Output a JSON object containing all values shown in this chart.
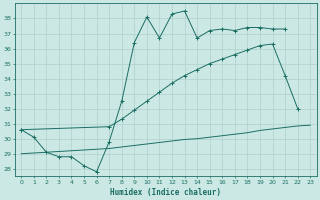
{
  "line1_x": [
    0,
    1,
    2,
    3,
    4,
    5,
    6,
    7,
    8,
    9,
    10,
    11,
    12,
    13,
    14,
    15,
    16,
    17,
    18,
    19,
    20,
    21
  ],
  "line1_y": [
    30.6,
    30.1,
    29.1,
    28.8,
    28.8,
    28.2,
    27.8,
    29.8,
    32.5,
    36.4,
    38.1,
    36.7,
    38.3,
    38.5,
    36.7,
    37.2,
    37.3,
    37.2,
    37.4,
    37.4,
    37.3,
    37.3
  ],
  "line2_x": [
    0,
    7,
    8,
    9,
    10,
    11,
    12,
    13,
    14,
    15,
    16,
    17,
    18,
    19,
    20,
    21,
    22
  ],
  "line2_y": [
    30.6,
    30.8,
    31.3,
    31.9,
    32.5,
    33.1,
    33.7,
    34.2,
    34.6,
    35.0,
    35.3,
    35.6,
    35.9,
    36.2,
    36.3,
    34.2,
    32.0
  ],
  "line3_x": [
    0,
    1,
    2,
    3,
    4,
    5,
    6,
    7,
    8,
    9,
    10,
    11,
    12,
    13,
    14,
    15,
    16,
    17,
    18,
    19,
    20,
    21,
    22,
    23
  ],
  "line3_y": [
    29.0,
    29.05,
    29.1,
    29.15,
    29.2,
    29.25,
    29.3,
    29.35,
    29.45,
    29.55,
    29.65,
    29.75,
    29.85,
    29.95,
    30.0,
    30.1,
    30.2,
    30.3,
    30.4,
    30.55,
    30.65,
    30.75,
    30.85,
    30.9
  ],
  "bg_color": "#cce8e4",
  "line_color": "#1a6e64",
  "grid_color": "#b0d0cc",
  "xlabel": "Humidex (Indice chaleur)",
  "ylim": [
    27.5,
    39.0
  ],
  "xlim": [
    -0.5,
    23.5
  ],
  "yticks": [
    28,
    29,
    30,
    31,
    32,
    33,
    34,
    35,
    36,
    37,
    38
  ],
  "xticks": [
    0,
    1,
    2,
    3,
    4,
    5,
    6,
    7,
    8,
    9,
    10,
    11,
    12,
    13,
    14,
    15,
    16,
    17,
    18,
    19,
    20,
    21,
    22,
    23
  ]
}
